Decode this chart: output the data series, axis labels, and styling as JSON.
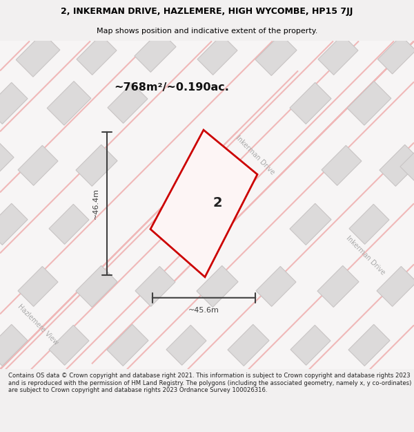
{
  "title_line1": "2, INKERMAN DRIVE, HAZLEMERE, HIGH WYCOMBE, HP15 7JJ",
  "title_line2": "Map shows position and indicative extent of the property.",
  "area_text": "~768m²/~0.190ac.",
  "width_label": "~45.6m",
  "height_label": "~46.4m",
  "property_number": "2",
  "footer_text": "Contains OS data © Crown copyright and database right 2021. This information is subject to Crown copyright and database rights 2023 and is reproduced with the permission of HM Land Registry. The polygons (including the associated geometry, namely x, y co-ordinates) are subject to Crown copyright and database rights 2023 Ordnance Survey 100026316.",
  "bg_color": "#f2f0f0",
  "map_bg": "#f2f0f0",
  "road_color": "#f0b8b8",
  "road_fill": "#f8f8f8",
  "building_fill": "#e0dcdc",
  "building_edge": "#c8c4c4",
  "property_fill": "#fdf5f5",
  "property_stroke": "#cc0000",
  "dim_line_color": "#404040",
  "title_color": "#000000",
  "footer_color": "#222222",
  "street_label_color": "#aaaaaa"
}
